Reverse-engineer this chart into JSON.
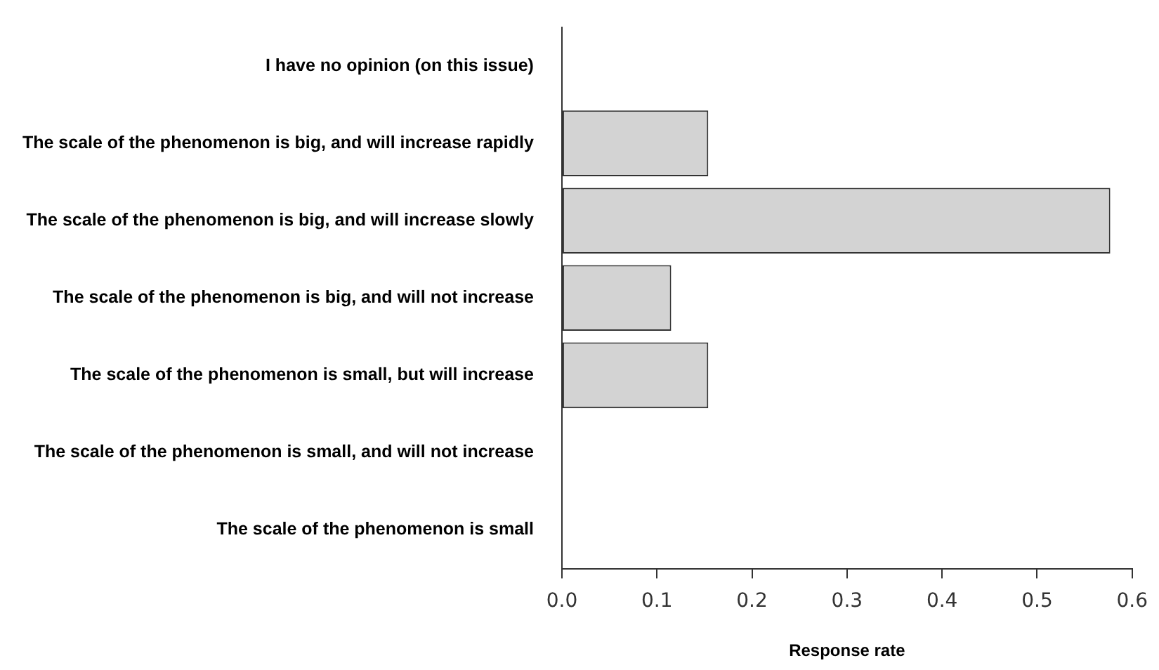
{
  "chart_data": {
    "type": "bar",
    "orientation": "horizontal",
    "xlabel": "Response rate",
    "categories": [
      "I have no opinion (on this issue)",
      "The scale of the phenomenon is big, and will increase rapidly",
      "The scale of the phenomenon is big, and will increase slowly",
      "The scale of the phenomenon is big, and will not increase",
      "The scale of the phenomenon is small, but will increase",
      "The scale of the phenomenon is small, and will not increase",
      "The scale of the phenomenon is small"
    ],
    "values": [
      0,
      0.154,
      0.577,
      0.115,
      0.154,
      0,
      0
    ],
    "color": "#d3d3d3",
    "xlim": [
      0,
      0.6
    ],
    "xticks": [
      {
        "value": 0,
        "label": "0.0"
      },
      0.1,
      0.2,
      0.3,
      0.4,
      0.5,
      0.6
    ],
    "grid": false,
    "legend": false
  }
}
